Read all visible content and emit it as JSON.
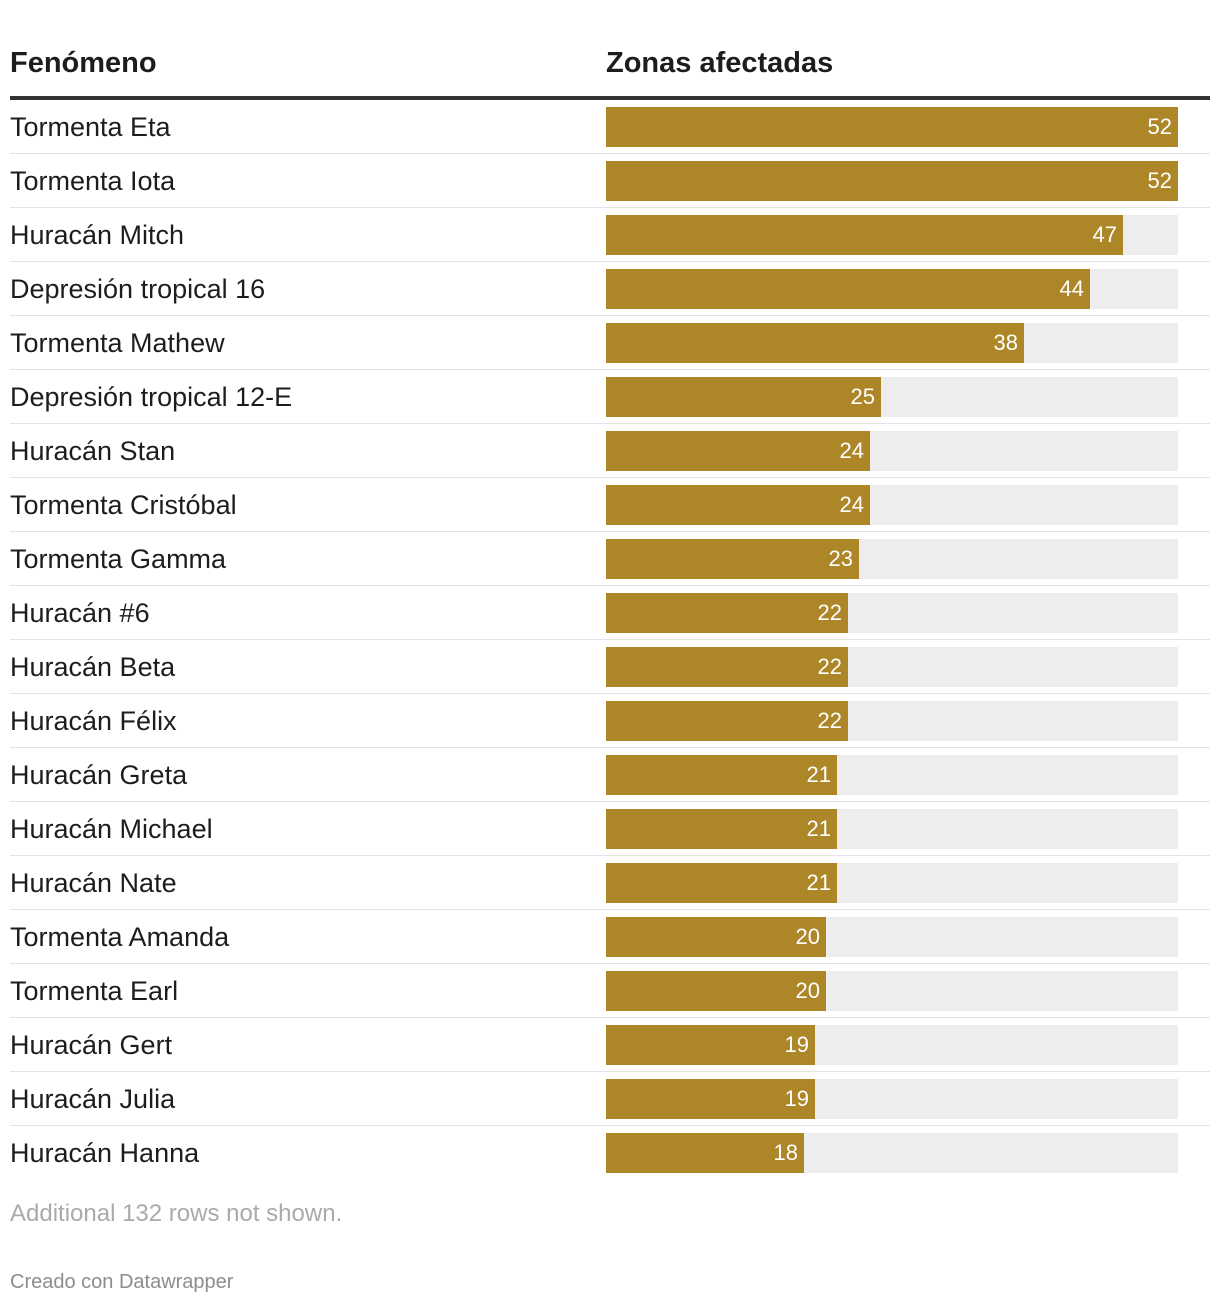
{
  "table": {
    "col_name_label": "Fenómeno",
    "col_value_label": "Zonas afectadas"
  },
  "chart_data": {
    "type": "bar",
    "orientation": "horizontal",
    "xlabel": "Fenómeno",
    "ylabel": "Zonas afectadas",
    "xlim": [
      0,
      52
    ],
    "bar_color": "#ad8628",
    "track_color": "#ededed",
    "categories": [
      "Tormenta Eta",
      "Tormenta Iota",
      "Huracán Mitch",
      "Depresión tropical 16",
      "Tormenta Mathew",
      "Depresión tropical 12-E",
      "Huracán Stan",
      "Tormenta Cristóbal",
      "Tormenta Gamma",
      "Huracán #6",
      "Huracán Beta",
      "Huracán Félix",
      "Huracán Greta",
      "Huracán Michael",
      "Huracán Nate",
      "Tormenta Amanda",
      "Tormenta Earl",
      "Huracán Gert",
      "Huracán Julia",
      "Huracán Hanna"
    ],
    "values": [
      52,
      52,
      47,
      44,
      38,
      25,
      24,
      24,
      23,
      22,
      22,
      22,
      21,
      21,
      21,
      20,
      20,
      19,
      19,
      18
    ]
  },
  "footnote": "Additional 132 rows not shown.",
  "credit": "Creado con Datawrapper"
}
